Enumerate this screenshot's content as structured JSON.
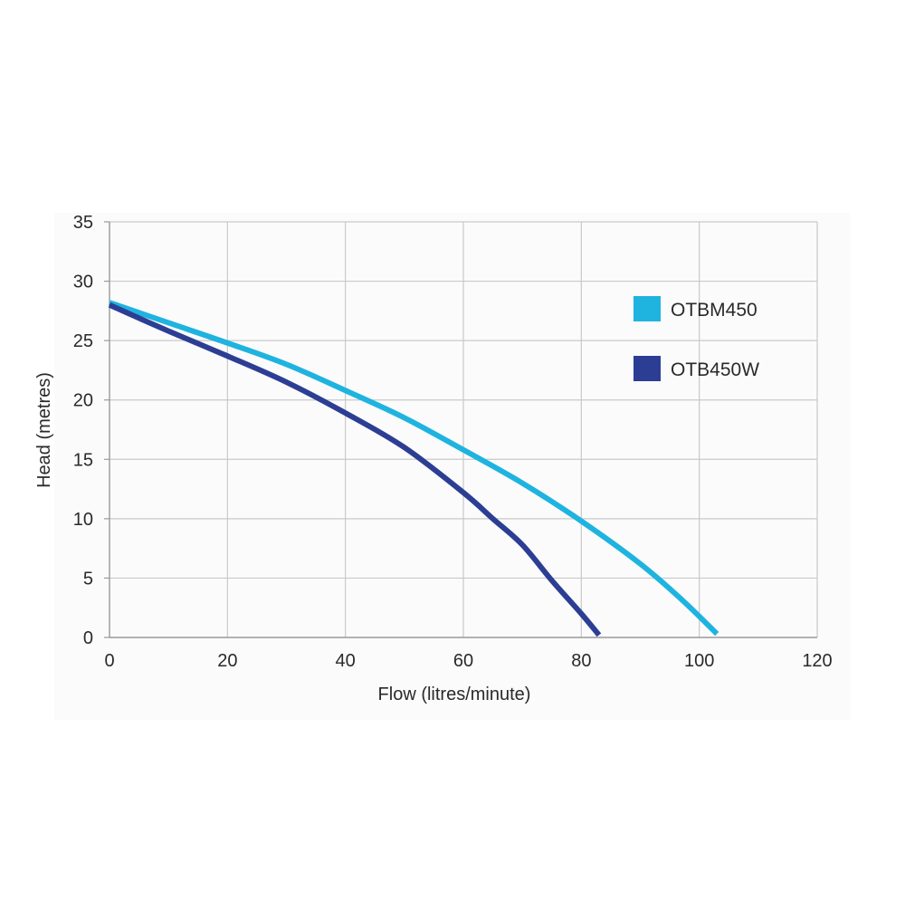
{
  "chart_data": {
    "type": "line",
    "title": "",
    "xlabel": "Flow (litres/minute)",
    "ylabel": "Head (metres)",
    "xlim": [
      0,
      120
    ],
    "ylim": [
      0,
      35
    ],
    "xticks": [
      "0",
      "20",
      "40",
      "60",
      "80",
      "100",
      "120"
    ],
    "yticks": [
      "0",
      "5",
      "10",
      "15",
      "20",
      "25",
      "30",
      "35"
    ],
    "grid": true,
    "legend_position": "right",
    "series": [
      {
        "name": "OTBM450",
        "color": "#1fb3e0",
        "x": [
          0,
          10,
          20,
          30,
          40,
          50,
          60,
          70,
          80,
          90,
          97,
          103
        ],
        "y": [
          28.2,
          26.5,
          24.8,
          23.0,
          20.8,
          18.5,
          15.8,
          13.0,
          9.8,
          6.2,
          3.2,
          0.3
        ]
      },
      {
        "name": "OTB450W",
        "color": "#2c3e94",
        "x": [
          0,
          10,
          20,
          30,
          40,
          50,
          60,
          65,
          70,
          75,
          80,
          83
        ],
        "y": [
          28.0,
          25.8,
          23.7,
          21.5,
          18.9,
          16.0,
          12.2,
          10.0,
          7.8,
          4.8,
          2.0,
          0.2
        ]
      }
    ]
  }
}
